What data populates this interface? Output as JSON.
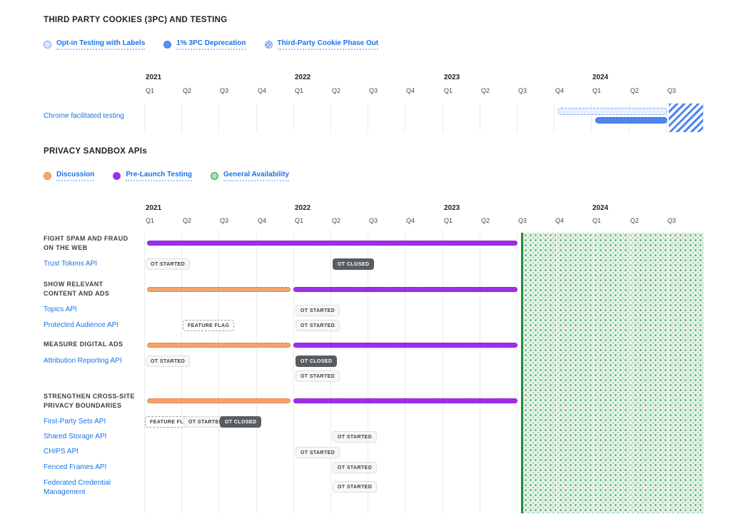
{
  "colors": {
    "link_blue": "#1a73e8",
    "title_dark": "#202124",
    "purple": "#9c30e8",
    "orange": "#f3a36c",
    "blue_solid": "#4f86f2",
    "blue_light": "#e9f1fe",
    "green_bg": "#e4f1e6",
    "green_accent": "#1e8e3e",
    "grid": "#e9ebee",
    "badge_dark_bg": "#595d62",
    "badge_light_bg": "#f6f7f8"
  },
  "axis": {
    "years": [
      "2021",
      "2022",
      "2023",
      "2024"
    ],
    "quarters": [
      "Q1",
      "Q2",
      "Q3",
      "Q4",
      "Q1",
      "Q2",
      "Q3",
      "Q4",
      "Q1",
      "Q2",
      "Q3",
      "Q4",
      "Q1",
      "Q2",
      "Q3"
    ]
  },
  "badge_labels": {
    "ot_started": "OT STARTED",
    "ot_closed": "OT CLOSED",
    "feature_flag": "FEATURE FLAG"
  },
  "cookies": {
    "title": "THIRD PARTY COOKIES (3PC) AND TESTING",
    "legend": [
      {
        "label": "Opt-in Testing with Labels"
      },
      {
        "label": "1% 3PC Deprecation"
      },
      {
        "label": "Third-Party Cookie Phase Out"
      }
    ],
    "row": {
      "label": "Chrome facilitated testing"
    }
  },
  "apis": {
    "title": "PRIVACY SANDBOX APIs",
    "legend": [
      {
        "label": "Discussion"
      },
      {
        "label": "Pre-Launch Testing"
      },
      {
        "label": "General Availability"
      }
    ],
    "groups": [
      {
        "lines": [
          "FIGHT SPAM AND FRAUD",
          "ON THE WEB"
        ],
        "apis": [
          {
            "label": "Trust Tokens API"
          }
        ]
      },
      {
        "lines": [
          "SHOW RELEVANT",
          "CONTENT AND ADS"
        ],
        "apis": [
          {
            "label": "Topics API"
          },
          {
            "label": "Protected Audience API"
          }
        ]
      },
      {
        "lines": [
          "MEASURE DIGITAL ADS"
        ],
        "apis": [
          {
            "label": "Attribution Reporting API"
          }
        ]
      },
      {
        "lines": [
          "STRENGTHEN CROSS-SITE",
          "PRIVACY BOUNDARIES"
        ],
        "apis": [
          {
            "label": "First-Party Sets API"
          },
          {
            "label": "Shared Storage API"
          },
          {
            "label": "CHIPS API"
          },
          {
            "label": "Fenced Frames API"
          },
          {
            "label": "Federated Credential Management"
          }
        ]
      }
    ]
  },
  "chart_data": [
    {
      "type": "gantt",
      "title": "THIRD PARTY COOKIES (3PC) AND TESTING",
      "x_axis": {
        "unit": "quarter",
        "years": [
          "2021",
          "2022",
          "2023",
          "2024"
        ],
        "quarters": [
          "2021-Q1",
          "2021-Q2",
          "2021-Q3",
          "2021-Q4",
          "2022-Q1",
          "2022-Q2",
          "2022-Q3",
          "2022-Q4",
          "2023-Q1",
          "2023-Q2",
          "2023-Q3",
          "2023-Q4",
          "2024-Q1",
          "2024-Q2",
          "2024-Q3"
        ]
      },
      "legend": [
        {
          "label": "Opt-in Testing with Labels",
          "swatch": "blue-outline"
        },
        {
          "label": "1% 3PC Deprecation",
          "swatch": "blue-solid"
        },
        {
          "label": "Third-Party Cookie Phase Out",
          "swatch": "blue-hatched"
        }
      ],
      "rows": [
        {
          "label": "Chrome facilitated testing",
          "bars": [
            {
              "series": "Opt-in Testing with Labels",
              "start": "2023-Q4",
              "end": "2024-Q2"
            },
            {
              "series": "1% 3PC Deprecation",
              "start": "2024-Q1",
              "end": "2024-Q2"
            }
          ]
        }
      ],
      "regions": [
        {
          "series": "Third-Party Cookie Phase Out",
          "start": "2024-Q3",
          "end": "2024-Q3"
        }
      ],
      "grid": true,
      "legend_position": "top-left"
    },
    {
      "type": "gantt",
      "title": "PRIVACY SANDBOX APIs",
      "x_axis": {
        "unit": "quarter",
        "years": [
          "2021",
          "2022",
          "2023",
          "2024"
        ],
        "quarters": [
          "2021-Q1",
          "2021-Q2",
          "2021-Q3",
          "2021-Q4",
          "2022-Q1",
          "2022-Q2",
          "2022-Q3",
          "2022-Q4",
          "2023-Q1",
          "2023-Q2",
          "2023-Q3",
          "2023-Q4",
          "2024-Q1",
          "2024-Q2",
          "2024-Q3"
        ]
      },
      "legend": [
        {
          "label": "Discussion",
          "swatch": "orange"
        },
        {
          "label": "Pre-Launch Testing",
          "swatch": "purple"
        },
        {
          "label": "General Availability",
          "swatch": "green-dotted"
        }
      ],
      "groups": [
        {
          "label": "FIGHT SPAM AND FRAUD ON THE WEB",
          "bars": [
            {
              "series": "Pre-Launch Testing",
              "start": "2021-Q1",
              "end": "2023-Q2"
            }
          ],
          "apis": [
            {
              "label": "Trust Tokens API",
              "milestones": [
                {
                  "badge": "OT STARTED",
                  "quarter": "2021-Q1"
                },
                {
                  "badge": "OT CLOSED",
                  "quarter": "2022-Q2"
                }
              ]
            }
          ]
        },
        {
          "label": "SHOW RELEVANT CONTENT AND ADS",
          "bars": [
            {
              "series": "Discussion",
              "start": "2021-Q1",
              "end": "2021-Q4"
            },
            {
              "series": "Pre-Launch Testing",
              "start": "2022-Q1",
              "end": "2023-Q2"
            }
          ],
          "apis": [
            {
              "label": "Topics API",
              "milestones": [
                {
                  "badge": "OT STARTED",
                  "quarter": "2022-Q1"
                }
              ]
            },
            {
              "label": "Protected Audience API",
              "milestones": [
                {
                  "badge": "FEATURE FLAG",
                  "quarter": "2021-Q2"
                },
                {
                  "badge": "OT STARTED",
                  "quarter": "2022-Q1"
                }
              ]
            }
          ]
        },
        {
          "label": "MEASURE DIGITAL ADS",
          "bars": [
            {
              "series": "Discussion",
              "start": "2021-Q1",
              "end": "2021-Q4"
            },
            {
              "series": "Pre-Launch Testing",
              "start": "2022-Q1",
              "end": "2023-Q2"
            }
          ],
          "apis": [
            {
              "label": "Attribution Reporting API",
              "milestones": [
                {
                  "badge": "OT STARTED",
                  "quarter": "2021-Q1"
                },
                {
                  "badge": "OT CLOSED",
                  "quarter": "2022-Q1"
                },
                {
                  "badge": "OT STARTED",
                  "quarter": "2022-Q1"
                }
              ]
            }
          ]
        },
        {
          "label": "STRENGTHEN CROSS-SITE PRIVACY BOUNDARIES",
          "bars": [
            {
              "series": "Discussion",
              "start": "2021-Q1",
              "end": "2021-Q4"
            },
            {
              "series": "Pre-Launch Testing",
              "start": "2022-Q1",
              "end": "2023-Q2"
            }
          ],
          "apis": [
            {
              "label": "First-Party Sets API",
              "milestones": [
                {
                  "badge": "FEATURE FLAG",
                  "quarter": "2021-Q1"
                },
                {
                  "badge": "OT STARTED",
                  "quarter": "2021-Q2"
                },
                {
                  "badge": "OT CLOSED",
                  "quarter": "2021-Q3"
                }
              ]
            },
            {
              "label": "Shared Storage API",
              "milestones": [
                {
                  "badge": "OT STARTED",
                  "quarter": "2022-Q2"
                }
              ]
            },
            {
              "label": "CHIPS API",
              "milestones": [
                {
                  "badge": "OT STARTED",
                  "quarter": "2022-Q1"
                }
              ]
            },
            {
              "label": "Fenced Frames API",
              "milestones": [
                {
                  "badge": "OT STARTED",
                  "quarter": "2022-Q2"
                }
              ]
            },
            {
              "label": "Federated Credential Management",
              "milestones": [
                {
                  "badge": "OT STARTED",
                  "quarter": "2022-Q2"
                }
              ]
            }
          ]
        }
      ],
      "regions": [
        {
          "series": "General Availability",
          "start": "2023-Q3",
          "end": "2024-Q3"
        }
      ],
      "grid": true,
      "legend_position": "top-left"
    }
  ]
}
